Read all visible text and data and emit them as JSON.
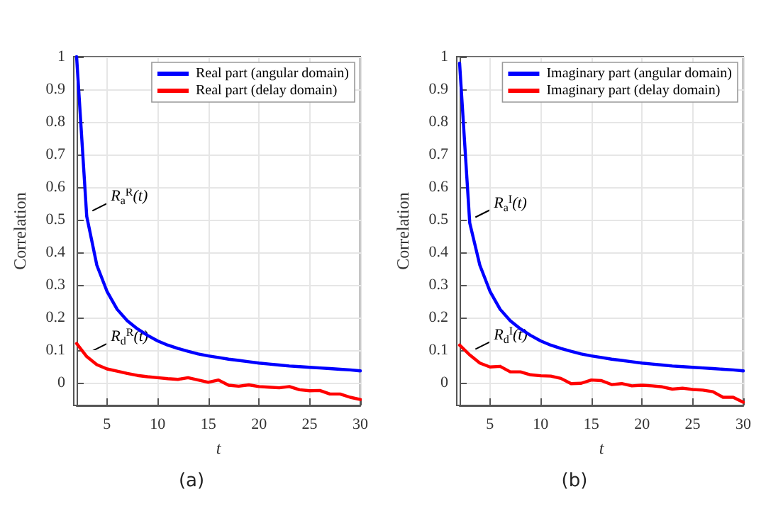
{
  "chart_data": [
    {
      "type": "line",
      "xlabel": "t",
      "ylabel": "Correlation",
      "x": [
        2,
        3,
        4,
        5,
        6,
        7,
        8,
        9,
        10,
        11,
        12,
        13,
        14,
        15,
        16,
        17,
        18,
        19,
        20,
        21,
        22,
        23,
        24,
        25,
        26,
        27,
        28,
        29,
        30
      ],
      "series": [
        {
          "name": "Real part (angular domain)",
          "color": "#0000ff",
          "values": [
            1.0,
            0.51,
            0.36,
            0.28,
            0.225,
            0.19,
            0.165,
            0.145,
            0.128,
            0.115,
            0.105,
            0.096,
            0.088,
            0.082,
            0.077,
            0.072,
            0.068,
            0.064,
            0.06,
            0.057,
            0.054,
            0.051,
            0.049,
            0.047,
            0.045,
            0.043,
            0.041,
            0.039,
            0.036
          ]
        },
        {
          "name": "Real part (delay domain)",
          "color": "#ff0000",
          "values": [
            0.12,
            0.08,
            0.055,
            0.042,
            0.035,
            0.028,
            0.022,
            0.018,
            0.015,
            0.012,
            0.01,
            0.015,
            0.008,
            0.001,
            0.008,
            -0.008,
            -0.011,
            -0.007,
            -0.012,
            -0.014,
            -0.016,
            -0.012,
            -0.022,
            -0.025,
            -0.024,
            -0.035,
            -0.035,
            -0.045,
            -0.052
          ]
        }
      ],
      "xlim": [
        2,
        30
      ],
      "xticks": [
        5,
        10,
        15,
        20,
        25,
        30
      ],
      "ylim": [
        -0.07,
        1
      ],
      "yticks": [
        0,
        0.1,
        0.2,
        0.3,
        0.4,
        0.5,
        0.6,
        0.7,
        0.8,
        0.9,
        1
      ],
      "grid": true,
      "legend": "top right",
      "marker": "none",
      "line_style": "solid",
      "annotations": [
        "R$_{a}$$^{R}$(t)",
        "R$_{d}$$^{R}$(t)",
        "(a)"
      ]
    },
    {
      "type": "line",
      "xlabel": "t",
      "ylabel": "Correlation",
      "x": [
        2,
        3,
        4,
        5,
        6,
        7,
        8,
        9,
        10,
        11,
        12,
        13,
        14,
        15,
        16,
        17,
        18,
        19,
        20,
        21,
        22,
        23,
        24,
        25,
        26,
        27,
        28,
        29,
        30
      ],
      "series": [
        {
          "name": "Imaginary part (angular domain)",
          "color": "#0000ff",
          "values": [
            0.98,
            0.49,
            0.36,
            0.28,
            0.225,
            0.19,
            0.165,
            0.145,
            0.128,
            0.115,
            0.105,
            0.096,
            0.088,
            0.082,
            0.077,
            0.072,
            0.068,
            0.064,
            0.06,
            0.057,
            0.054,
            0.051,
            0.049,
            0.047,
            0.045,
            0.043,
            0.041,
            0.039,
            0.036
          ]
        },
        {
          "name": "Imaginary part (delay domain)",
          "color": "#ff0000",
          "values": [
            0.115,
            0.085,
            0.06,
            0.048,
            0.05,
            0.033,
            0.033,
            0.024,
            0.021,
            0.02,
            0.013,
            -0.003,
            -0.002,
            0.008,
            0.006,
            -0.006,
            -0.003,
            -0.01,
            -0.008,
            -0.01,
            -0.013,
            -0.02,
            -0.017,
            -0.021,
            -0.023,
            -0.028,
            -0.045,
            -0.045,
            -0.06
          ]
        }
      ],
      "xlim": [
        2,
        30
      ],
      "xticks": [
        5,
        10,
        15,
        20,
        25,
        30
      ],
      "ylim": [
        -0.07,
        1
      ],
      "yticks": [
        0,
        0.1,
        0.2,
        0.3,
        0.4,
        0.5,
        0.6,
        0.7,
        0.8,
        0.9,
        1
      ],
      "grid": true,
      "legend": "top right",
      "marker": "none",
      "line_style": "solid",
      "annotations": [
        "R$_{a}$$^{I}$(t)",
        "R$_{d}$$^{I}$(t)",
        "(b)"
      ]
    }
  ]
}
